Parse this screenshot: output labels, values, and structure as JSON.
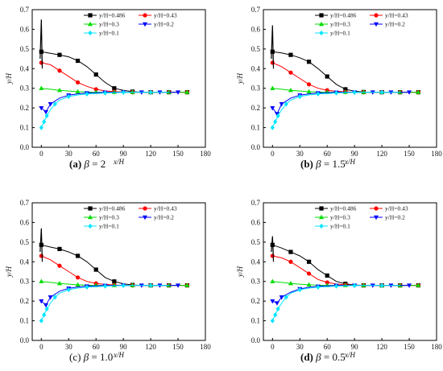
{
  "legend": [
    {
      "name": "y/H=0.486",
      "color": "#000000",
      "marker": "square"
    },
    {
      "name": "y/H=0.43",
      "color": "#ff0000",
      "marker": "circle"
    },
    {
      "name": "y/H=0.3",
      "color": "#00dd00",
      "marker": "triangle-up"
    },
    {
      "name": "y/H=0.2",
      "color": "#0000ff",
      "marker": "triangle-down"
    },
    {
      "name": "y/H=0.1",
      "color": "#00e5ff",
      "marker": "diamond"
    }
  ],
  "captions": [
    {
      "letter": "(a)",
      "beta": "β",
      "value": "= 2",
      "letter_bold": true
    },
    {
      "letter": "(b)",
      "beta": "β",
      "value": "= 1.5",
      "letter_bold": true
    },
    {
      "letter": "(c)",
      "beta": "β",
      "value": "= 1.0",
      "letter_bold": false
    },
    {
      "letter": "(d)",
      "beta": "β",
      "value": "= 0.5",
      "letter_bold": true
    }
  ],
  "chart_data": [
    {
      "type": "line",
      "caption": "(a) β = 2",
      "xlabel": "x/H",
      "ylabel": "y/H",
      "xlim": [
        -10,
        180
      ],
      "ylim": [
        0,
        0.7
      ],
      "xticks": [
        0,
        30,
        60,
        90,
        120,
        150,
        180
      ],
      "yticks": [
        0,
        0.1,
        0.2,
        0.3,
        0.4,
        0.5,
        0.6,
        0.7
      ],
      "legend_position": "top",
      "spike": {
        "x": 0,
        "ymax": 0.65
      },
      "series": [
        {
          "name": "y/H=0.486",
          "x": [
            0,
            10,
            20,
            30,
            40,
            50,
            60,
            70,
            80,
            90,
            100,
            110,
            120,
            130,
            140,
            150,
            160
          ],
          "y": [
            0.486,
            0.478,
            0.47,
            0.46,
            0.44,
            0.41,
            0.37,
            0.33,
            0.3,
            0.29,
            0.283,
            0.28,
            0.28,
            0.28,
            0.28,
            0.28,
            0.28
          ]
        },
        {
          "name": "y/H=0.43",
          "x": [
            0,
            10,
            20,
            30,
            40,
            50,
            60,
            70,
            80,
            90,
            100,
            110,
            120,
            130,
            140,
            150,
            160
          ],
          "y": [
            0.43,
            0.42,
            0.39,
            0.36,
            0.33,
            0.31,
            0.295,
            0.287,
            0.283,
            0.281,
            0.28,
            0.28,
            0.28,
            0.28,
            0.28,
            0.28,
            0.28
          ]
        },
        {
          "name": "y/H=0.3",
          "x": [
            0,
            10,
            20,
            30,
            40,
            50,
            60,
            70,
            80,
            90,
            100,
            110,
            120,
            130,
            140,
            150,
            160
          ],
          "y": [
            0.3,
            0.295,
            0.29,
            0.286,
            0.283,
            0.281,
            0.28,
            0.28,
            0.28,
            0.28,
            0.28,
            0.28,
            0.28,
            0.28,
            0.28,
            0.28,
            0.28
          ]
        },
        {
          "name": "y/H=0.2",
          "x": [
            0,
            5,
            10,
            20,
            30,
            40,
            50,
            60,
            70,
            80,
            90,
            100,
            110,
            120,
            130,
            140,
            150
          ],
          "y": [
            0.2,
            0.18,
            0.22,
            0.25,
            0.265,
            0.272,
            0.276,
            0.278,
            0.279,
            0.28,
            0.28,
            0.28,
            0.28,
            0.28,
            0.28,
            0.28,
            0.28
          ]
        },
        {
          "name": "y/H=0.1",
          "x": [
            0,
            3,
            6,
            10,
            15,
            20,
            30,
            40,
            50,
            60,
            70,
            80,
            90,
            100,
            120,
            140
          ],
          "y": [
            0.1,
            0.13,
            0.16,
            0.19,
            0.22,
            0.24,
            0.258,
            0.266,
            0.271,
            0.274,
            0.276,
            0.278,
            0.279,
            0.28,
            0.28,
            0.28
          ]
        }
      ]
    },
    {
      "type": "line",
      "caption": "(b) β = 1.5",
      "xlabel": "x/H",
      "ylabel": "y/H",
      "xlim": [
        -10,
        180
      ],
      "ylim": [
        0,
        0.7
      ],
      "xticks": [
        0,
        30,
        60,
        90,
        120,
        150,
        180
      ],
      "yticks": [
        0,
        0.1,
        0.2,
        0.3,
        0.4,
        0.5,
        0.6,
        0.7
      ],
      "legend_position": "top",
      "spike": {
        "x": 0,
        "ymax": 0.62
      },
      "series": [
        {
          "name": "y/H=0.486",
          "x": [
            0,
            10,
            20,
            30,
            40,
            50,
            60,
            70,
            80,
            90,
            100,
            110,
            120,
            130,
            140,
            150,
            160
          ],
          "y": [
            0.486,
            0.48,
            0.47,
            0.455,
            0.435,
            0.4,
            0.36,
            0.32,
            0.295,
            0.285,
            0.281,
            0.28,
            0.28,
            0.28,
            0.28,
            0.28,
            0.28
          ]
        },
        {
          "name": "y/H=0.43",
          "x": [
            0,
            10,
            20,
            30,
            40,
            50,
            60,
            70,
            80,
            90,
            100,
            110,
            120,
            130,
            140,
            150,
            160
          ],
          "y": [
            0.43,
            0.41,
            0.38,
            0.35,
            0.32,
            0.3,
            0.29,
            0.285,
            0.282,
            0.28,
            0.28,
            0.28,
            0.28,
            0.28,
            0.28,
            0.28,
            0.28
          ]
        },
        {
          "name": "y/H=0.3",
          "x": [
            0,
            10,
            20,
            30,
            40,
            50,
            60,
            70,
            80,
            90,
            100,
            110,
            120,
            130,
            140,
            150,
            160
          ],
          "y": [
            0.3,
            0.295,
            0.29,
            0.286,
            0.283,
            0.281,
            0.28,
            0.28,
            0.28,
            0.28,
            0.28,
            0.28,
            0.28,
            0.28,
            0.28,
            0.28,
            0.28
          ]
        },
        {
          "name": "y/H=0.2",
          "x": [
            0,
            5,
            10,
            20,
            30,
            40,
            50,
            60,
            70,
            80,
            90,
            100,
            110,
            120,
            130,
            140,
            150
          ],
          "y": [
            0.2,
            0.17,
            0.22,
            0.25,
            0.265,
            0.272,
            0.276,
            0.278,
            0.279,
            0.28,
            0.28,
            0.28,
            0.28,
            0.28,
            0.28,
            0.28,
            0.28
          ]
        },
        {
          "name": "y/H=0.1",
          "x": [
            0,
            3,
            6,
            10,
            15,
            20,
            30,
            40,
            50,
            60,
            70,
            80,
            90,
            100,
            120,
            140
          ],
          "y": [
            0.1,
            0.13,
            0.16,
            0.19,
            0.22,
            0.24,
            0.258,
            0.266,
            0.271,
            0.274,
            0.276,
            0.278,
            0.279,
            0.28,
            0.28,
            0.28
          ]
        }
      ]
    },
    {
      "type": "line",
      "caption": "(c) β = 1.0",
      "xlabel": "x/H",
      "ylabel": "y/H",
      "xlim": [
        -10,
        180
      ],
      "ylim": [
        0,
        0.7
      ],
      "xticks": [
        0,
        30,
        60,
        90,
        120,
        150,
        180
      ],
      "yticks": [
        0,
        0.1,
        0.2,
        0.3,
        0.4,
        0.5,
        0.6,
        0.7
      ],
      "legend_position": "top",
      "spike": {
        "x": 0,
        "ymax": 0.57
      },
      "series": [
        {
          "name": "y/H=0.486",
          "x": [
            0,
            10,
            20,
            30,
            40,
            50,
            60,
            70,
            80,
            90,
            100,
            110,
            120,
            130,
            140,
            150,
            160
          ],
          "y": [
            0.486,
            0.475,
            0.465,
            0.45,
            0.43,
            0.4,
            0.36,
            0.32,
            0.3,
            0.288,
            0.282,
            0.28,
            0.28,
            0.28,
            0.28,
            0.28,
            0.28
          ]
        },
        {
          "name": "y/H=0.43",
          "x": [
            0,
            10,
            20,
            30,
            40,
            50,
            60,
            70,
            80,
            90,
            100,
            110,
            120,
            130,
            140,
            150,
            160
          ],
          "y": [
            0.43,
            0.41,
            0.38,
            0.35,
            0.32,
            0.3,
            0.29,
            0.285,
            0.282,
            0.28,
            0.28,
            0.28,
            0.28,
            0.28,
            0.28,
            0.28,
            0.28
          ]
        },
        {
          "name": "y/H=0.3",
          "x": [
            0,
            10,
            20,
            30,
            40,
            50,
            60,
            70,
            80,
            90,
            100,
            110,
            120,
            130,
            140,
            150,
            160
          ],
          "y": [
            0.3,
            0.295,
            0.29,
            0.286,
            0.283,
            0.281,
            0.28,
            0.28,
            0.28,
            0.28,
            0.28,
            0.28,
            0.28,
            0.28,
            0.28,
            0.28,
            0.28
          ]
        },
        {
          "name": "y/H=0.2",
          "x": [
            0,
            5,
            10,
            20,
            30,
            40,
            50,
            60,
            70,
            80,
            90,
            100,
            110,
            120,
            130,
            140,
            150
          ],
          "y": [
            0.2,
            0.18,
            0.22,
            0.25,
            0.265,
            0.272,
            0.276,
            0.278,
            0.279,
            0.28,
            0.28,
            0.28,
            0.28,
            0.28,
            0.28,
            0.28,
            0.28
          ]
        },
        {
          "name": "y/H=0.1",
          "x": [
            0,
            3,
            6,
            10,
            15,
            20,
            30,
            40,
            50,
            60,
            70,
            80,
            90,
            100,
            120,
            140
          ],
          "y": [
            0.1,
            0.13,
            0.16,
            0.19,
            0.22,
            0.24,
            0.258,
            0.266,
            0.271,
            0.274,
            0.276,
            0.278,
            0.279,
            0.28,
            0.28,
            0.28
          ]
        }
      ]
    },
    {
      "type": "line",
      "caption": "(d) β = 0.5",
      "xlabel": "x/H",
      "ylabel": "y/H",
      "xlim": [
        -10,
        180
      ],
      "ylim": [
        0,
        0.7
      ],
      "xticks": [
        0,
        30,
        60,
        90,
        120,
        150,
        180
      ],
      "yticks": [
        0,
        0.1,
        0.2,
        0.3,
        0.4,
        0.5,
        0.6,
        0.7
      ],
      "legend_position": "top",
      "spike": {
        "x": 0,
        "ymax": 0.53
      },
      "series": [
        {
          "name": "y/H=0.486",
          "x": [
            0,
            10,
            20,
            30,
            40,
            50,
            60,
            70,
            80,
            90,
            100,
            110,
            120,
            130,
            140,
            150,
            160
          ],
          "y": [
            0.486,
            0.47,
            0.45,
            0.43,
            0.4,
            0.36,
            0.33,
            0.3,
            0.288,
            0.282,
            0.28,
            0.28,
            0.28,
            0.28,
            0.28,
            0.28,
            0.28
          ]
        },
        {
          "name": "y/H=0.43",
          "x": [
            0,
            10,
            20,
            30,
            40,
            50,
            60,
            70,
            80,
            90,
            100,
            110,
            120,
            130,
            140,
            150,
            160
          ],
          "y": [
            0.43,
            0.42,
            0.4,
            0.37,
            0.34,
            0.31,
            0.295,
            0.287,
            0.283,
            0.281,
            0.28,
            0.28,
            0.28,
            0.28,
            0.28,
            0.28,
            0.28
          ]
        },
        {
          "name": "y/H=0.3",
          "x": [
            0,
            10,
            20,
            30,
            40,
            50,
            60,
            70,
            80,
            90,
            100,
            110,
            120,
            130,
            140,
            150,
            160
          ],
          "y": [
            0.3,
            0.295,
            0.29,
            0.286,
            0.283,
            0.281,
            0.28,
            0.28,
            0.28,
            0.28,
            0.28,
            0.28,
            0.28,
            0.28,
            0.28,
            0.28,
            0.28
          ]
        },
        {
          "name": "y/H=0.2",
          "x": [
            0,
            5,
            10,
            20,
            30,
            40,
            50,
            60,
            70,
            80,
            90,
            100,
            110,
            120,
            130,
            140,
            150
          ],
          "y": [
            0.2,
            0.19,
            0.22,
            0.245,
            0.262,
            0.27,
            0.275,
            0.278,
            0.279,
            0.28,
            0.28,
            0.28,
            0.28,
            0.28,
            0.28,
            0.28,
            0.28
          ]
        },
        {
          "name": "y/H=0.1",
          "x": [
            0,
            3,
            6,
            10,
            15,
            20,
            30,
            40,
            50,
            60,
            70,
            80,
            90,
            100,
            120,
            140
          ],
          "y": [
            0.1,
            0.13,
            0.16,
            0.19,
            0.22,
            0.24,
            0.258,
            0.266,
            0.271,
            0.274,
            0.276,
            0.278,
            0.279,
            0.28,
            0.28,
            0.28
          ]
        }
      ]
    }
  ]
}
